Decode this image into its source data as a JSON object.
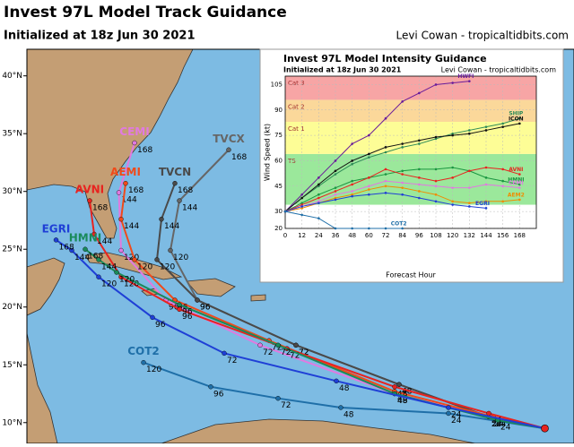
{
  "header": {
    "title": "Invest 97L Model Track Guidance",
    "subtitle": "Initialized at 18z Jun 30 2021",
    "credit": "Levi Cowan - tropicaltidbits.com"
  },
  "map": {
    "xlim": [
      -88.5,
      -39.7
    ],
    "ylim": [
      8.2,
      42.3
    ],
    "yticks": [
      {
        "value": 10,
        "label": "10°N"
      },
      {
        "value": 15,
        "label": "15°N"
      },
      {
        "value": 20,
        "label": "20°N"
      },
      {
        "value": 25,
        "label": "25°N"
      },
      {
        "value": 30,
        "label": "30°N"
      },
      {
        "value": 35,
        "label": "35°N"
      },
      {
        "value": 40,
        "label": "40°N"
      }
    ],
    "origin": {
      "lon": -42.3,
      "lat": 9.5
    },
    "tracks": [
      {
        "name": "COT2",
        "color": "#1f6fa8",
        "hours": [
          24,
          48,
          72,
          96,
          120
        ],
        "lon": [
          -50.9,
          -60.5,
          -66.1,
          -72.1,
          -78.1
        ],
        "lat": [
          10.8,
          11.3,
          12.1,
          13.1,
          15.2
        ]
      },
      {
        "name": "TVCX",
        "color": "#666666",
        "hours": [
          24,
          48,
          72,
          96,
          120,
          144,
          168
        ],
        "lon": [
          -47.3,
          -55.3,
          -64.5,
          -73.3,
          -75.7,
          -74.9,
          -70.5
        ],
        "lat": [
          10.5,
          13.3,
          16.7,
          20.6,
          24.9,
          29.2,
          33.6
        ]
      },
      {
        "name": "TVCN",
        "color": "#4a4a4a",
        "hours": [
          24,
          48,
          72,
          96,
          120,
          144,
          168
        ],
        "lon": [
          -47.3,
          -55.3,
          -64.5,
          -73.3,
          -76.9,
          -76.5,
          -75.3
        ],
        "lat": [
          10.5,
          13.3,
          16.7,
          20.6,
          24.1,
          27.6,
          30.7
        ]
      },
      {
        "name": "CEMI",
        "color": "#e07ae0",
        "hours": [
          24,
          48,
          72,
          96,
          120,
          144,
          168
        ],
        "lon": [
          -47.1,
          -55.7,
          -67.7,
          -76.1,
          -80.1,
          -80.3,
          -78.9
        ],
        "lat": [
          10.5,
          12.5,
          16.7,
          20.6,
          24.9,
          29.9,
          34.2
        ]
      },
      {
        "name": "AEMI",
        "color": "#f04a1a",
        "hours": [
          24,
          48,
          72,
          96,
          120,
          144,
          168
        ],
        "lon": [
          -46.9,
          -55.7,
          -66.9,
          -75.3,
          -78.9,
          -80.1,
          -79.7
        ],
        "lat": [
          10.5,
          12.7,
          17.1,
          20.6,
          24.1,
          27.6,
          30.7
        ]
      },
      {
        "name": "AVNI",
        "color": "#e8231f",
        "hours": [
          24,
          48,
          72,
          96,
          120,
          144,
          168
        ],
        "lon": [
          -47.3,
          -55.7,
          -65.3,
          -74.9,
          -80.1,
          -82.5,
          -82.9
        ],
        "lat": [
          10.8,
          13.1,
          16.4,
          19.8,
          22.6,
          26.3,
          29.2
        ]
      },
      {
        "name": "HMNI",
        "color": "#1a8a5a",
        "hours": [
          24,
          48,
          72,
          96,
          120,
          144,
          168
        ],
        "lon": [
          -46.5,
          -55.7,
          -66.1,
          -74.9,
          -80.5,
          -82.1,
          -83.3
        ],
        "lat": [
          10.2,
          12.5,
          16.7,
          20.2,
          23.0,
          24.1,
          25.0
        ]
      },
      {
        "name": "EGRI",
        "color": "#1f3fd6",
        "hours": [
          24,
          48,
          72,
          96,
          120,
          144,
          168
        ],
        "lon": [
          -50.9,
          -60.9,
          -70.9,
          -77.3,
          -82.1,
          -84.5,
          -85.9
        ],
        "lat": [
          11.3,
          13.6,
          16.0,
          19.1,
          22.6,
          24.9,
          25.8
        ]
      }
    ]
  },
  "chart_data": {
    "type": "line",
    "title": "Invest 97L Model Intensity Guidance",
    "subtitle": "Initialized at 18z Jun 30 2021",
    "credit": "Levi Cowan - tropicaltidbits.com",
    "xlabel": "Forecast Hour",
    "ylabel": "Wind Speed (kt)",
    "x": [
      0,
      12,
      24,
      36,
      48,
      60,
      72,
      84,
      96,
      108,
      120,
      132,
      144,
      156,
      168
    ],
    "xlim": [
      0,
      180
    ],
    "xticks": [
      0,
      12,
      24,
      36,
      48,
      60,
      72,
      84,
      96,
      108,
      120,
      132,
      144,
      156,
      168
    ],
    "ylim": [
      20,
      110
    ],
    "yticks": [
      20,
      30,
      45,
      60,
      75,
      90,
      105
    ],
    "grid": true,
    "bands": [
      {
        "label": "TS",
        "from": 34,
        "to": 64,
        "color": "#9be89b"
      },
      {
        "label": "Cat 1",
        "from": 64,
        "to": 83,
        "color": "#fdfd96"
      },
      {
        "label": "Cat 2",
        "from": 83,
        "to": 96,
        "color": "#fbd89a"
      },
      {
        "label": "Cat 3",
        "from": 96,
        "to": 110,
        "color": "#f7a5a5"
      }
    ],
    "series": [
      {
        "name": "HWFI",
        "color": "#6a1b9a",
        "values": [
          30,
          40,
          50,
          60,
          70,
          75,
          85,
          95,
          100,
          105,
          106,
          107,
          null,
          null,
          null
        ]
      },
      {
        "name": "SHIP",
        "color": "#2e8b57",
        "values": [
          30,
          38,
          45,
          52,
          58,
          62,
          65,
          68,
          70,
          73,
          76,
          78,
          80,
          82,
          85
        ]
      },
      {
        "name": "ICON",
        "color": "#111111",
        "values": [
          30,
          38,
          46,
          54,
          60,
          64,
          68,
          70,
          72,
          74,
          75,
          76,
          78,
          80,
          82
        ]
      },
      {
        "name": "HMNI",
        "color": "#1a9641",
        "values": [
          30,
          35,
          40,
          44,
          48,
          50,
          52,
          54,
          55,
          55,
          56,
          54,
          50,
          48,
          46
        ]
      },
      {
        "name": "AVNI",
        "color": "#e8231f",
        "values": [
          30,
          34,
          38,
          42,
          46,
          50,
          55,
          52,
          50,
          48,
          50,
          54,
          56,
          55,
          52
        ]
      },
      {
        "name": "CEMI",
        "color": "#e07ae0",
        "values": [
          30,
          33,
          36,
          40,
          42,
          45,
          48,
          47,
          46,
          45,
          44,
          44,
          46,
          45,
          44
        ]
      },
      {
        "name": "AEM2",
        "color": "#f08c00",
        "values": [
          30,
          32,
          35,
          38,
          40,
          43,
          45,
          44,
          42,
          40,
          36,
          35,
          36,
          36,
          37
        ]
      },
      {
        "name": "EGRI",
        "color": "#1f3fd6",
        "values": [
          30,
          33,
          35,
          37,
          39,
          40,
          41,
          40,
          38,
          36,
          34,
          33,
          32,
          null,
          null
        ]
      },
      {
        "name": "COT2",
        "color": "#1f6fa8",
        "values": [
          30,
          28,
          26,
          20,
          20,
          20,
          20,
          20,
          null,
          null,
          null,
          null,
          null,
          null,
          null
        ]
      }
    ]
  }
}
